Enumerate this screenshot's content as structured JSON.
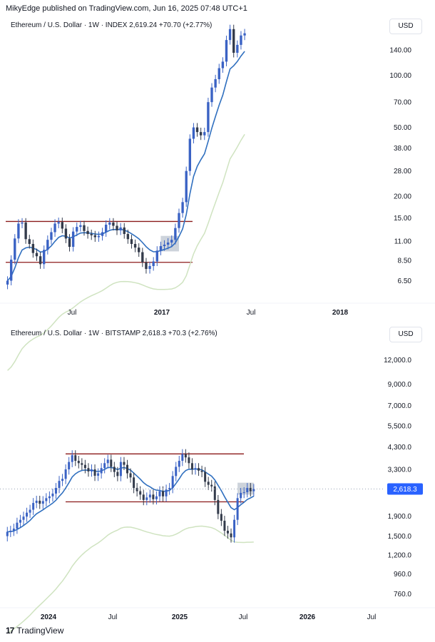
{
  "header": {
    "published": "MikyEdge published on TradingView.com, Jun 16, 2025 07:48 UTC+1"
  },
  "footer": {
    "brand": "TradingView",
    "logo_glyph": "17"
  },
  "colors": {
    "candle_up": "#3a62c4",
    "candle_down": "#333b4b",
    "ma_fast": "#2f6fbf",
    "ma_slow": "#cfe3c0",
    "range_line": "#8b1a1a",
    "zone": "#b8c1cc",
    "badge": "#2962ff"
  },
  "panels": [
    {
      "legend": "Ethereum / U.S. Dollar · 1W · INDEX  2,619.24  +70.70 (+2.77%)",
      "currency": "USD",
      "price_labels": [
        "140.00",
        "100.00",
        "70.00",
        "50.00",
        "38.00",
        "28.00",
        "20.00",
        "15.00",
        "11.00",
        "8.50",
        "6.50"
      ],
      "time_labels": [
        "Jul",
        "2017",
        "Jul",
        "2018"
      ]
    },
    {
      "legend": "Ethereum / U.S. Dollar · 1W · BITSTAMP  2,618.3  +70.3 (+2.76%)",
      "currency": "USD",
      "price_labels": [
        "12,000.0",
        "9,000.0",
        "7,000.0",
        "5,500.0",
        "4,300.0",
        "3,300.0",
        "2,618.3",
        "1,900.0",
        "1,500.0",
        "1,200.0",
        "960.0",
        "760.0"
      ],
      "time_labels": [
        "2024",
        "Jul",
        "2025",
        "Jul",
        "2026",
        "Jul"
      ],
      "last_price": "2,618.3"
    }
  ],
  "chart_data": [
    {
      "type": "candlestick",
      "title": "Ethereum / U.S. Dollar · 1W · INDEX",
      "y_scale": "log",
      "ylim": [
        5.2,
        190
      ],
      "x_range": [
        "2016-03",
        "2018-04"
      ],
      "range_lines": [
        14.3,
        8.3
      ],
      "zone": {
        "low": 9.6,
        "high": 11.8,
        "from": "2017-01",
        "to": "2017-02"
      },
      "closes": [
        6.5,
        8.6,
        11.4,
        13.9,
        14.1,
        11.3,
        10.6,
        9.4,
        9.0,
        8.1,
        9.8,
        11.2,
        12.4,
        13.9,
        14.2,
        13.0,
        11.4,
        10.2,
        12.5,
        13.3,
        13.6,
        12.6,
        12.1,
        11.9,
        11.6,
        11.8,
        12.4,
        13.7,
        14.1,
        13.5,
        12.7,
        13.2,
        12.1,
        11.3,
        10.6,
        10.1,
        9.5,
        8.3,
        7.6,
        7.9,
        8.4,
        9.7,
        10.3,
        10.5,
        10.8,
        11.2,
        13.1,
        16.0,
        18.5,
        28.0,
        43.0,
        50.0,
        47.0,
        45.0,
        47.0,
        70.0,
        85.0,
        95.0,
        110.0,
        120.0,
        160.0,
        185.0,
        135.0,
        150.0,
        170.0,
        175.0
      ]
    },
    {
      "type": "candlestick",
      "title": "Ethereum / U.S. Dollar · 1W · BITSTAMP",
      "y_scale": "log",
      "ylim": [
        690,
        14500
      ],
      "x_range": [
        "2023-10",
        "2026-09"
      ],
      "last_price": 2618.3,
      "range_lines": [
        3960,
        2250
      ],
      "zone": {
        "low": 2450,
        "high": 2820,
        "from": "2025-05",
        "to": "2025-06"
      },
      "closes": [
        1580,
        1600,
        1640,
        1760,
        1820,
        1890,
        1980,
        2050,
        2220,
        2280,
        2200,
        2270,
        2350,
        2400,
        2480,
        2650,
        2880,
        2950,
        3300,
        3600,
        3900,
        3650,
        3550,
        3480,
        3350,
        3220,
        3300,
        3060,
        3150,
        3350,
        3550,
        3700,
        3400,
        3200,
        3050,
        3600,
        3480,
        3150,
        3000,
        2650,
        2550,
        2450,
        2300,
        2370,
        2450,
        2320,
        2400,
        2550,
        2400,
        2600,
        2650,
        3050,
        3400,
        3650,
        3950,
        3800,
        3550,
        3300,
        3350,
        3250,
        3200,
        2850,
        2750,
        2700,
        2300,
        1950,
        1800,
        1600,
        1550,
        1480,
        1820,
        2350,
        2500,
        2520,
        2650,
        2550,
        2620
      ]
    }
  ]
}
